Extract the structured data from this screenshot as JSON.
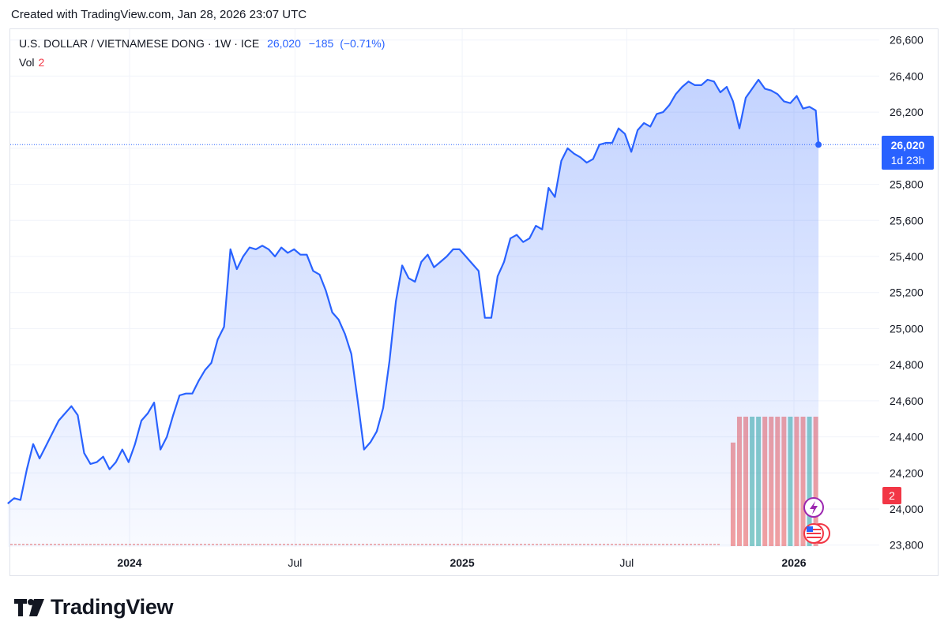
{
  "header": {
    "caption": "Created with TradingView.com, Jan 28, 2026 23:07 UTC"
  },
  "legend": {
    "symbol": "U.S. DOLLAR / VIETNAMESE DONG · 1W · ICE",
    "last": "26,020",
    "change": "−185",
    "change_pct": "(−0.71%)",
    "vol_label": "Vol",
    "vol_value": "2"
  },
  "price_tag": {
    "price": "26,020",
    "countdown": "1d 23h"
  },
  "vol_tag": "2",
  "brand": {
    "name": "TradingView"
  },
  "colors": {
    "line": "#2962ff",
    "vol_up": "#26a69a",
    "vol_down": "#ef5350",
    "grid": "#f0f3fa"
  },
  "chart_data": {
    "type": "area",
    "title": "U.S. DOLLAR / VIETNAMESE DONG",
    "interval": "1W",
    "y_ticks": [
      26600,
      26400,
      26200,
      26000,
      25800,
      25600,
      25400,
      25200,
      25000,
      24800,
      24600,
      24400,
      24200,
      24000,
      23800
    ],
    "ylim": [
      23790,
      26660
    ],
    "x_ticks": [
      {
        "label": "2024",
        "date": "2024-01-01",
        "bold": true
      },
      {
        "label": "Jul",
        "date": "2024-07-01",
        "bold": false
      },
      {
        "label": "2025",
        "date": "2025-01-01",
        "bold": true
      },
      {
        "label": "Jul",
        "date": "2025-07-01",
        "bold": false
      },
      {
        "label": "2026",
        "date": "2026-01-01",
        "bold": true
      }
    ],
    "last_price": 26020,
    "series": [
      {
        "name": "USD/VND",
        "points": [
          [
            "2023-08-20",
            24030
          ],
          [
            "2023-08-27",
            24060
          ],
          [
            "2023-09-03",
            24050
          ],
          [
            "2023-09-10",
            24220
          ],
          [
            "2023-09-17",
            24360
          ],
          [
            "2023-09-24",
            24280
          ],
          [
            "2023-10-01",
            24350
          ],
          [
            "2023-10-08",
            24420
          ],
          [
            "2023-10-15",
            24490
          ],
          [
            "2023-10-22",
            24530
          ],
          [
            "2023-10-29",
            24570
          ],
          [
            "2023-11-05",
            24520
          ],
          [
            "2023-11-12",
            24310
          ],
          [
            "2023-11-19",
            24250
          ],
          [
            "2023-11-26",
            24260
          ],
          [
            "2023-12-03",
            24290
          ],
          [
            "2023-12-10",
            24220
          ],
          [
            "2023-12-17",
            24260
          ],
          [
            "2023-12-24",
            24330
          ],
          [
            "2023-12-31",
            24260
          ],
          [
            "2024-01-07",
            24360
          ],
          [
            "2024-01-14",
            24490
          ],
          [
            "2024-01-21",
            24530
          ],
          [
            "2024-01-28",
            24590
          ],
          [
            "2024-02-04",
            24330
          ],
          [
            "2024-02-11",
            24400
          ],
          [
            "2024-02-18",
            24520
          ],
          [
            "2024-02-25",
            24630
          ],
          [
            "2024-03-03",
            24640
          ],
          [
            "2024-03-10",
            24640
          ],
          [
            "2024-03-17",
            24710
          ],
          [
            "2024-03-24",
            24770
          ],
          [
            "2024-03-31",
            24810
          ],
          [
            "2024-04-07",
            24940
          ],
          [
            "2024-04-14",
            25010
          ],
          [
            "2024-04-21",
            25440
          ],
          [
            "2024-04-28",
            25330
          ],
          [
            "2024-05-05",
            25400
          ],
          [
            "2024-05-12",
            25450
          ],
          [
            "2024-05-19",
            25440
          ],
          [
            "2024-05-26",
            25460
          ],
          [
            "2024-06-02",
            25440
          ],
          [
            "2024-06-09",
            25400
          ],
          [
            "2024-06-16",
            25450
          ],
          [
            "2024-06-23",
            25420
          ],
          [
            "2024-06-30",
            25440
          ],
          [
            "2024-07-07",
            25410
          ],
          [
            "2024-07-14",
            25410
          ],
          [
            "2024-07-21",
            25320
          ],
          [
            "2024-07-28",
            25300
          ],
          [
            "2024-08-04",
            25210
          ],
          [
            "2024-08-11",
            25090
          ],
          [
            "2024-08-18",
            25050
          ],
          [
            "2024-08-25",
            24970
          ],
          [
            "2024-09-01",
            24860
          ],
          [
            "2024-09-08",
            24600
          ],
          [
            "2024-09-15",
            24330
          ],
          [
            "2024-09-22",
            24370
          ],
          [
            "2024-09-29",
            24430
          ],
          [
            "2024-10-06",
            24560
          ],
          [
            "2024-10-13",
            24820
          ],
          [
            "2024-10-20",
            25150
          ],
          [
            "2024-10-27",
            25350
          ],
          [
            "2024-11-03",
            25280
          ],
          [
            "2024-11-10",
            25260
          ],
          [
            "2024-11-17",
            25370
          ],
          [
            "2024-11-24",
            25410
          ],
          [
            "2024-12-01",
            25340
          ],
          [
            "2024-12-08",
            25370
          ],
          [
            "2024-12-15",
            25400
          ],
          [
            "2024-12-22",
            25440
          ],
          [
            "2024-12-29",
            25440
          ],
          [
            "2025-01-05",
            25400
          ],
          [
            "2025-01-12",
            25360
          ],
          [
            "2025-01-19",
            25320
          ],
          [
            "2025-01-26",
            25060
          ],
          [
            "2025-02-02",
            25060
          ],
          [
            "2025-02-09",
            25290
          ],
          [
            "2025-02-16",
            25370
          ],
          [
            "2025-02-23",
            25500
          ],
          [
            "2025-03-02",
            25520
          ],
          [
            "2025-03-09",
            25480
          ],
          [
            "2025-03-16",
            25500
          ],
          [
            "2025-03-23",
            25570
          ],
          [
            "2025-03-30",
            25550
          ],
          [
            "2025-04-06",
            25780
          ],
          [
            "2025-04-13",
            25730
          ],
          [
            "2025-04-20",
            25930
          ],
          [
            "2025-04-27",
            26000
          ],
          [
            "2025-05-04",
            25970
          ],
          [
            "2025-05-11",
            25950
          ],
          [
            "2025-05-18",
            25920
          ],
          [
            "2025-05-25",
            25940
          ],
          [
            "2025-06-01",
            26020
          ],
          [
            "2025-06-08",
            26030
          ],
          [
            "2025-06-15",
            26030
          ],
          [
            "2025-06-22",
            26110
          ],
          [
            "2025-06-29",
            26080
          ],
          [
            "2025-07-06",
            25980
          ],
          [
            "2025-07-13",
            26100
          ],
          [
            "2025-07-20",
            26140
          ],
          [
            "2025-07-27",
            26120
          ],
          [
            "2025-08-03",
            26190
          ],
          [
            "2025-08-10",
            26200
          ],
          [
            "2025-08-17",
            26240
          ],
          [
            "2025-08-24",
            26300
          ],
          [
            "2025-08-31",
            26340
          ],
          [
            "2025-09-07",
            26370
          ],
          [
            "2025-09-14",
            26350
          ],
          [
            "2025-09-21",
            26350
          ],
          [
            "2025-09-28",
            26380
          ],
          [
            "2025-10-05",
            26370
          ],
          [
            "2025-10-12",
            26310
          ],
          [
            "2025-10-19",
            26340
          ],
          [
            "2025-10-26",
            26260
          ],
          [
            "2025-11-02",
            26110
          ],
          [
            "2025-11-09",
            26280
          ],
          [
            "2025-11-16",
            26330
          ],
          [
            "2025-11-23",
            26380
          ],
          [
            "2025-11-30",
            26330
          ],
          [
            "2025-12-07",
            26320
          ],
          [
            "2025-12-14",
            26300
          ],
          [
            "2025-12-21",
            26260
          ],
          [
            "2025-12-28",
            26250
          ],
          [
            "2026-01-04",
            26290
          ],
          [
            "2026-01-11",
            26220
          ],
          [
            "2026-01-18",
            26230
          ],
          [
            "2026-01-25",
            26210
          ],
          [
            "2026-01-28",
            26020
          ]
        ]
      }
    ],
    "volume": {
      "name": "Vol",
      "ymax": 2,
      "bars": [
        [
          "2025-10-26",
          1.6,
          "down"
        ],
        [
          "2025-11-02",
          2,
          "down"
        ],
        [
          "2025-11-09",
          2,
          "down"
        ],
        [
          "2025-11-16",
          2,
          "up"
        ],
        [
          "2025-11-23",
          2,
          "up"
        ],
        [
          "2025-11-30",
          2,
          "down"
        ],
        [
          "2025-12-07",
          2,
          "down"
        ],
        [
          "2025-12-14",
          2,
          "down"
        ],
        [
          "2025-12-21",
          2,
          "down"
        ],
        [
          "2025-12-28",
          2,
          "up"
        ],
        [
          "2026-01-04",
          2,
          "down"
        ],
        [
          "2026-01-11",
          2,
          "down"
        ],
        [
          "2026-01-18",
          2,
          "up"
        ],
        [
          "2026-01-25",
          2,
          "down"
        ]
      ]
    }
  }
}
